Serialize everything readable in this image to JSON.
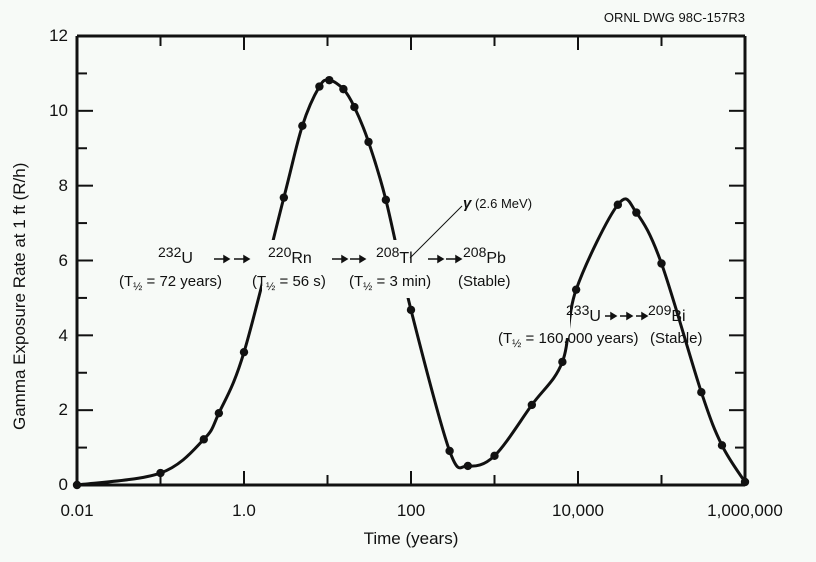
{
  "header": {
    "drawing_id": "ORNL DWG 98C-157R3"
  },
  "colors": {
    "background": "#f7faf7",
    "line": "#111111"
  },
  "axes": {
    "ylabel": "Gamma Exposure Rate at 1 ft (R/h)",
    "xlabel": "Time (years)",
    "yticks": [
      "0",
      "2",
      "4",
      "6",
      "8",
      "10",
      "12"
    ],
    "xticks": [
      "0.01",
      "1.0",
      "100",
      "10,000",
      "1,000,000"
    ]
  },
  "annotations": {
    "chain1": {
      "u232": {
        "mass": "232",
        "symbol": "U",
        "half_life_label": "T",
        "half_life_value": "= 72 years"
      },
      "rn220": {
        "mass": "220",
        "symbol": "Rn",
        "half_life_label": "T",
        "half_life_value": "= 56 s"
      },
      "tl208": {
        "mass": "208",
        "symbol": "Tl",
        "half_life_label": "T",
        "half_life_value": "= 3 min"
      },
      "pb208": {
        "mass": "208",
        "symbol": "Pb",
        "stable": "(Stable)"
      }
    },
    "chain2": {
      "u233": {
        "mass": "233",
        "symbol": "U",
        "half_life_label": "T",
        "half_life_value": "= 160,000 years"
      },
      "bi209": {
        "mass": "209",
        "symbol": "Bi",
        "stable": "(Stable)"
      }
    },
    "gamma": {
      "symbol": "γ",
      "energy": "(2.6 MeV)"
    },
    "half_sub": "½"
  },
  "chart_data": {
    "type": "line",
    "title": "",
    "xlabel": "Time (years)",
    "ylabel": "Gamma Exposure Rate at 1 ft (R/h)",
    "xscale": "log",
    "xlim": [
      0.01,
      1000000
    ],
    "ylim": [
      0,
      12
    ],
    "xticks": [
      0.01,
      0.1,
      1,
      10,
      100,
      1000,
      10000,
      100000,
      1000000
    ],
    "xtick_labels": [
      "0.01",
      "",
      "1.0",
      "",
      "100",
      "",
      "10,000",
      "",
      "1,000,000"
    ],
    "yticks": [
      0,
      1,
      2,
      3,
      4,
      5,
      6,
      7,
      8,
      9,
      10,
      11,
      12
    ],
    "ytick_labels": [
      "0",
      "",
      "2",
      "",
      "4",
      "",
      "6",
      "",
      "8",
      "",
      "10",
      "",
      "12"
    ],
    "grid": false,
    "legend": null,
    "markers": true,
    "series": [
      {
        "name": "Gamma exposure rate",
        "x": [
          0.01,
          0.1,
          0.33,
          0.5,
          1.0,
          3.0,
          5.0,
          8.0,
          10.5,
          15.5,
          21,
          31,
          50,
          100,
          290,
          480,
          1000,
          2800,
          6500,
          9500,
          30000,
          50000,
          100000,
          300000,
          530000,
          1000000
        ],
        "y": [
          0.0,
          0.32,
          1.22,
          1.92,
          3.55,
          7.68,
          9.6,
          10.65,
          10.82,
          10.58,
          10.1,
          9.17,
          7.62,
          4.68,
          0.91,
          0.51,
          0.78,
          2.14,
          3.29,
          5.22,
          7.49,
          7.28,
          5.92,
          2.48,
          1.06,
          0.08
        ]
      }
    ],
    "annotations": [
      {
        "text": "232U → 220Rn → 208Tl → 208Pb",
        "sub": "(T½ = 72 years) (T½ = 56 s) (T½ = 3 min) (Stable)"
      },
      {
        "text": "γ (2.6 MeV)",
        "points_to": "208Tl"
      },
      {
        "text": "233U → 209Bi",
        "sub": "(T½ = 160,000 years) (Stable)"
      }
    ]
  }
}
